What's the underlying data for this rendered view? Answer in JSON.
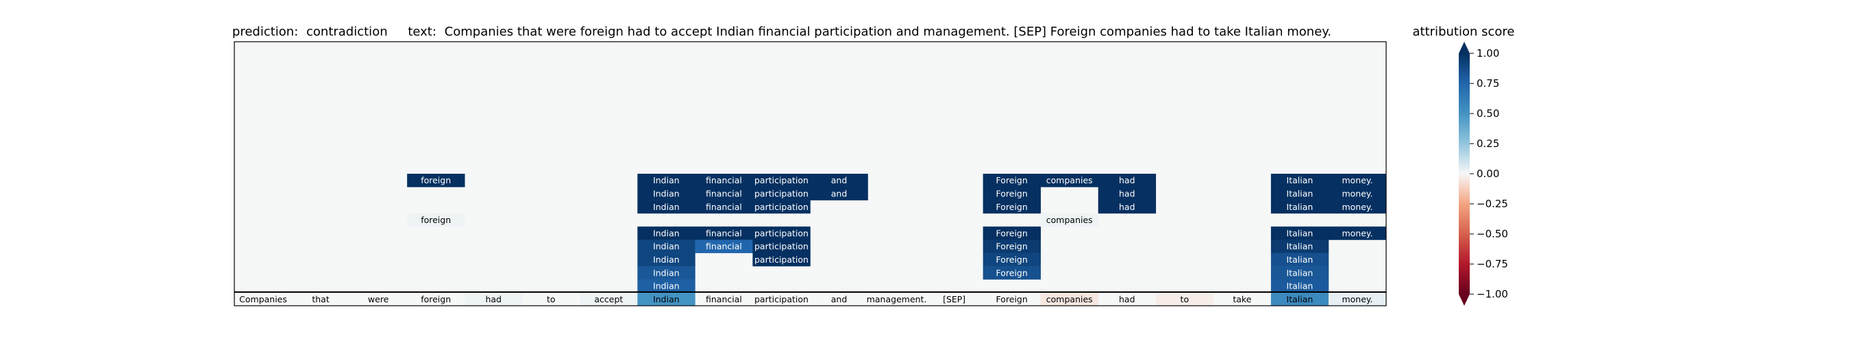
{
  "chart_data": {
    "type": "heatmap",
    "title": {
      "prediction_label": "prediction:",
      "prediction_value": "contradiction",
      "text_label": "text:",
      "text_value": "Companies that were foreign had to accept Indian financial participation and management. [SEP] Foreign companies had to take Italian money."
    },
    "tokens": [
      "Companies",
      "that",
      "were",
      "foreign",
      "had",
      "to",
      "accept",
      "Indian",
      "financial",
      "participation",
      "and",
      "management.",
      "[SEP]",
      "Foreign",
      "companies",
      "had",
      "to",
      "take",
      "Italian",
      "money."
    ],
    "rows_total": 20,
    "base_row": [
      0.0,
      0.0,
      0.0,
      0.0,
      0.02,
      0.0,
      0.02,
      0.5,
      0.0,
      0.0,
      0.0,
      0.0,
      0.0,
      0.0,
      -0.05,
      0.0,
      -0.03,
      0.0,
      0.55,
      0.04
    ],
    "active_rows": [
      {
        "row": 10,
        "values": [
          0,
          0,
          0,
          1.0,
          0,
          0,
          0,
          1.0,
          1.0,
          1.0,
          1.0,
          0,
          0,
          1.0,
          1.0,
          1.0,
          0,
          0,
          1.0,
          1.0
        ]
      },
      {
        "row": 11,
        "values": [
          0,
          0,
          0,
          0,
          0,
          0,
          0,
          1.0,
          1.0,
          1.0,
          1.0,
          0,
          0,
          1.0,
          0,
          1.0,
          0,
          0,
          1.0,
          1.0
        ]
      },
      {
        "row": 12,
        "values": [
          0,
          0,
          0,
          0,
          0,
          0,
          0,
          1.0,
          1.0,
          1.0,
          0,
          0,
          0,
          1.0,
          0,
          1.0,
          0,
          0,
          1.0,
          1.0
        ]
      },
      {
        "row": 13,
        "values": [
          0,
          0,
          0,
          0.02,
          0,
          0,
          0,
          0,
          0,
          0,
          0,
          0,
          0,
          0,
          0.02,
          0,
          0,
          0,
          0,
          0
        ]
      },
      {
        "row": 14,
        "values": [
          0,
          0,
          0,
          0,
          0,
          0,
          0,
          1.0,
          1.0,
          1.0,
          0,
          0,
          0,
          1.0,
          0,
          0,
          0,
          0,
          1.0,
          1.0
        ]
      },
      {
        "row": 15,
        "values": [
          0,
          0,
          0,
          0,
          0,
          0,
          0,
          0.9,
          0.75,
          1.0,
          0,
          0,
          0,
          0.95,
          0,
          0,
          0,
          0,
          0.95,
          0
        ]
      },
      {
        "row": 16,
        "values": [
          0,
          0,
          0,
          0,
          0,
          0,
          0,
          0.9,
          0,
          1.0,
          0,
          0,
          0,
          0.9,
          0,
          0,
          0,
          0,
          0.85,
          0
        ]
      },
      {
        "row": 17,
        "values": [
          0,
          0,
          0,
          0,
          0,
          0,
          0,
          0.82,
          0,
          0,
          0,
          0,
          0,
          0.85,
          0,
          0,
          0,
          0,
          0.82,
          0
        ]
      },
      {
        "row": 18,
        "values": [
          0,
          0,
          0,
          0,
          0,
          0,
          0,
          0.78,
          0,
          0,
          0,
          0,
          0,
          0,
          0,
          0,
          0,
          0,
          0.8,
          0
        ]
      }
    ],
    "colorbar": {
      "label": "attribution score",
      "min": -1.0,
      "max": 1.0,
      "ticks": [
        1.0,
        0.75,
        0.5,
        0.25,
        0.0,
        -0.25,
        -0.5,
        -0.75,
        -1.0
      ],
      "tick_labels": [
        "1.00",
        "0.75",
        "0.50",
        "0.25",
        "0.00",
        "−0.25",
        "−0.50",
        "−0.75",
        "−1.00"
      ],
      "colormap": "RdBu"
    },
    "grid": false
  }
}
